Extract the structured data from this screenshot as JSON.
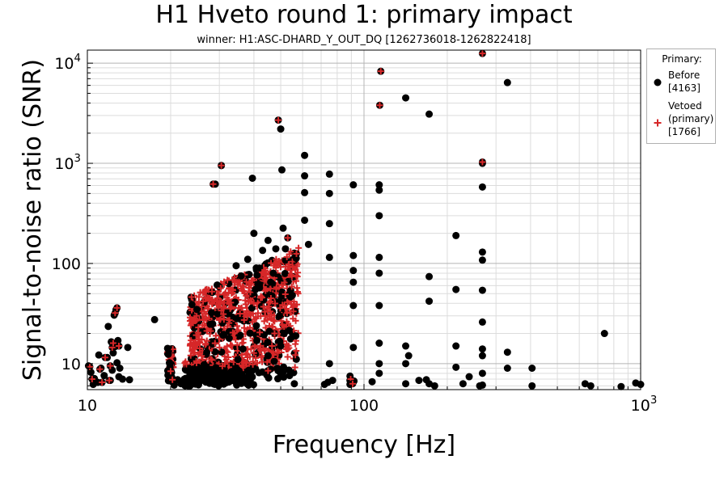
{
  "chart_data": {
    "type": "scatter",
    "title": "H1 Hveto round 1: primary impact",
    "subtitle": "winner: H1:ASC-DHARD_Y_OUT_DQ [1262736018-1262822418]",
    "xlabel": "Frequency [Hz]",
    "ylabel": "Signal-to-noise ratio (SNR)",
    "xscale": "log",
    "yscale": "log",
    "xlim": [
      10,
      1000
    ],
    "ylim": [
      5.5,
      13500
    ],
    "x_ticks": [
      10,
      100,
      1000
    ],
    "x_tick_labels": [
      "10",
      "100",
      "10^3"
    ],
    "y_ticks": [
      10,
      100,
      1000,
      10000
    ],
    "y_tick_labels": [
      "10",
      "100",
      "10^3",
      "10^4"
    ],
    "grid": true,
    "legend": {
      "title": "Primary:",
      "placement": "outside-right",
      "entries": [
        {
          "label": "Before\n[4163]",
          "marker": "circle",
          "color": "#000000"
        },
        {
          "label": "Vetoed\n(primary)\n[1766]",
          "marker": "plus",
          "color": "#d62728"
        }
      ]
    },
    "series": [
      {
        "name": "Before [4163]",
        "marker": "circle",
        "color": "#000000",
        "points": [
          [
            10.1,
            9.5
          ],
          [
            10.3,
            8.2
          ],
          [
            10.6,
            7.1
          ],
          [
            10.9,
            6.5
          ],
          [
            11.2,
            9.0
          ],
          [
            11.5,
            7.6
          ],
          [
            11.8,
            11.5
          ],
          [
            12.1,
            6.8
          ],
          [
            12.3,
            8.6
          ],
          [
            12.6,
            14.8
          ],
          [
            12.8,
            10.2
          ],
          [
            13.0,
            7.4
          ],
          [
            11.9,
            23.5
          ],
          [
            12.5,
            30.5
          ],
          [
            12.7,
            34.5
          ],
          [
            12.2,
            16.5
          ],
          [
            12.9,
            17.0
          ],
          [
            13.4,
            7.0
          ],
          [
            14.0,
            14.5
          ],
          [
            14.2,
            6.9
          ],
          [
            11.0,
            12.2
          ],
          [
            10.5,
            6.2
          ],
          [
            12.4,
            12.8
          ],
          [
            13.1,
            9.0
          ],
          [
            17.5,
            27.5
          ],
          [
            19.5,
            14.2
          ],
          [
            19.6,
            12.4
          ],
          [
            19.8,
            10.2
          ],
          [
            19.9,
            9.2
          ],
          [
            20.1,
            8.1
          ],
          [
            20.2,
            7.3
          ],
          [
            20.4,
            6.6
          ],
          [
            20.6,
            6.1
          ],
          [
            21.2,
            6.9
          ],
          [
            21.8,
            6.3
          ],
          [
            22.4,
            7.0
          ],
          [
            22.9,
            6.2
          ],
          [
            29.0,
            620
          ],
          [
            30.5,
            950
          ],
          [
            39.5,
            710
          ],
          [
            40.0,
            200
          ],
          [
            43.0,
            135
          ],
          [
            45.0,
            170
          ],
          [
            48.0,
            140
          ],
          [
            50.0,
            2200
          ],
          [
            50.5,
            860
          ],
          [
            51.0,
            225
          ],
          [
            47.0,
            80
          ],
          [
            46.0,
            65
          ],
          [
            52.0,
            140
          ],
          [
            38.0,
            110
          ],
          [
            36.0,
            75
          ],
          [
            34.5,
            95
          ],
          [
            40.5,
            55
          ],
          [
            42.5,
            20
          ],
          [
            45.5,
            21
          ],
          [
            49.5,
            30
          ],
          [
            50.0,
            15
          ],
          [
            51.5,
            20
          ],
          [
            41.0,
            17
          ],
          [
            36.5,
            14
          ],
          [
            35.0,
            11
          ],
          [
            44.5,
            8
          ],
          [
            48.5,
            9
          ],
          [
            50.0,
            8
          ],
          [
            45.0,
            12
          ],
          [
            56.0,
            6.3
          ],
          [
            61.0,
            1200
          ],
          [
            61.0,
            750
          ],
          [
            61.0,
            510
          ],
          [
            61.0,
            270
          ],
          [
            63.0,
            155
          ],
          [
            75.0,
            780
          ],
          [
            75.0,
            500
          ],
          [
            75.0,
            250
          ],
          [
            75.0,
            115
          ],
          [
            75.0,
            10
          ],
          [
            77.0,
            6.8
          ],
          [
            72.0,
            6.2
          ],
          [
            74.0,
            6.5
          ],
          [
            89.0,
            7.5
          ],
          [
            89.0,
            6.8
          ],
          [
            89.0,
            6.2
          ],
          [
            91.5,
            610
          ],
          [
            91.5,
            120
          ],
          [
            91.5,
            85
          ],
          [
            91.5,
            65
          ],
          [
            91.5,
            38
          ],
          [
            91.5,
            14.5
          ],
          [
            92.0,
            6.7
          ],
          [
            107.0,
            6.6
          ],
          [
            113.5,
            540
          ],
          [
            113.5,
            610
          ],
          [
            113.5,
            300
          ],
          [
            113.5,
            115
          ],
          [
            113.5,
            80
          ],
          [
            113.5,
            38
          ],
          [
            113.5,
            16
          ],
          [
            113.5,
            10
          ],
          [
            113.5,
            8
          ],
          [
            141.5,
            4500
          ],
          [
            141.5,
            15
          ],
          [
            141.5,
            10
          ],
          [
            141.5,
            6.3
          ],
          [
            145.0,
            12
          ],
          [
            158.0,
            6.8
          ],
          [
            168.0,
            6.9
          ],
          [
            172.0,
            3100
          ],
          [
            172.0,
            74
          ],
          [
            172.0,
            42
          ],
          [
            172.0,
            6.3
          ],
          [
            180.0,
            6.0
          ],
          [
            215.0,
            190
          ],
          [
            215.0,
            55
          ],
          [
            215.0,
            15
          ],
          [
            215.0,
            9.2
          ],
          [
            228.0,
            6.3
          ],
          [
            240.0,
            7.4
          ],
          [
            268.0,
            1000
          ],
          [
            268.0,
            580
          ],
          [
            268.0,
            130
          ],
          [
            268.0,
            108
          ],
          [
            268.0,
            54
          ],
          [
            268.0,
            26
          ],
          [
            268.0,
            14
          ],
          [
            268.0,
            12
          ],
          [
            268.0,
            8
          ],
          [
            268.0,
            6.1
          ],
          [
            262.0,
            6.0
          ],
          [
            330.0,
            6400
          ],
          [
            330.0,
            13
          ],
          [
            330.0,
            9.0
          ],
          [
            405.0,
            9.0
          ],
          [
            405.0,
            6.0
          ],
          [
            630.0,
            6.3
          ],
          [
            660.0,
            6.0
          ],
          [
            740.0,
            20
          ],
          [
            850.0,
            5.9
          ],
          [
            960.0,
            6.4
          ],
          [
            1000.0,
            6.2
          ]
        ]
      },
      {
        "name": "Vetoed (primary) [1766]",
        "marker": "plus",
        "color": "#d62728",
        "points": [
          [
            10.2,
            9.3
          ],
          [
            10.4,
            7.0
          ],
          [
            11.1,
            8.8
          ],
          [
            11.6,
            11.5
          ],
          [
            12.0,
            6.8
          ],
          [
            12.3,
            14.5
          ],
          [
            12.6,
            32.0
          ],
          [
            12.8,
            36.0
          ],
          [
            12.4,
            16.0
          ],
          [
            13.0,
            15.0
          ],
          [
            12.1,
            9.5
          ],
          [
            11.3,
            6.5
          ],
          [
            20.0,
            8.4
          ],
          [
            20.3,
            6.9
          ],
          [
            28.5,
            620
          ],
          [
            30.5,
            950
          ],
          [
            49.0,
            2700
          ],
          [
            53.0,
            180
          ],
          [
            57.0,
            125
          ],
          [
            47.5,
            20.0
          ],
          [
            42.0,
            20.5
          ],
          [
            46.5,
            15.0
          ],
          [
            115.0,
            8300
          ],
          [
            114.0,
            3800
          ],
          [
            268.0,
            12500
          ],
          [
            268.0,
            1030
          ],
          [
            89.5,
            7.0
          ],
          [
            91.0,
            6.3
          ],
          [
            45.0,
            8.5
          ]
        ]
      }
    ]
  }
}
